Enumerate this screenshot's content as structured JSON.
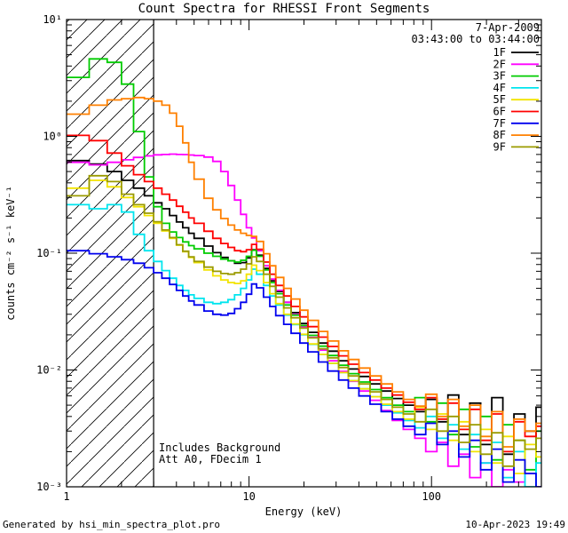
{
  "title": "Count Spectra for RHESSI Front Segments",
  "header": {
    "date": "7-Apr-2009",
    "time_range": "03:43:00 to 03:44:00"
  },
  "annotations": {
    "line1": "Includes Background",
    "line2": "Att A0, FDecim 1"
  },
  "footer": {
    "left": "Generated by hsi_min_spectra_plot.pro",
    "right": "10-Apr-2023 19:49"
  },
  "axes": {
    "x": {
      "label": "Energy (keV)",
      "scale": "log",
      "ticks": [
        {
          "v": 1,
          "label": "1"
        },
        {
          "v": 10,
          "label": "10"
        },
        {
          "v": 100,
          "label": "100"
        }
      ]
    },
    "y": {
      "label": "counts cm⁻² s⁻¹ keV⁻¹",
      "scale": "log",
      "ticks": [
        {
          "v": 0.001,
          "label": "10⁻³"
        },
        {
          "v": 0.01,
          "label": "10⁻²"
        },
        {
          "v": 0.1,
          "label": "10⁻¹"
        },
        {
          "v": 1,
          "label": "10⁰"
        },
        {
          "v": 10,
          "label": "10¹"
        }
      ]
    }
  },
  "chart_data": {
    "type": "line",
    "mode": "histogram-step",
    "x_scale": "log",
    "y_scale": "log",
    "xlim": [
      1,
      400
    ],
    "ylim": [
      0.001,
      10
    ],
    "title": "Count Spectra for RHESSI Front Segments",
    "xlabel": "Energy (keV)",
    "ylabel": "counts cm-2 s-1 keV-1",
    "legend_position": "top-right-inside",
    "grid": false,
    "excluded_region": {
      "x_min": 1,
      "x_max": 3,
      "style": "diagonal-hatch"
    },
    "x": [
      1.0,
      1.33,
      1.67,
      2.0,
      2.33,
      2.67,
      3.0,
      3.33,
      3.67,
      4.0,
      4.33,
      4.67,
      5.0,
      5.67,
      6.33,
      7.0,
      7.67,
      8.33,
      9.0,
      9.67,
      10.33,
      11.0,
      12.0,
      13.0,
      14.0,
      15.5,
      17.0,
      19.0,
      21.0,
      24.0,
      27.0,
      31.0,
      35.0,
      40.0,
      46.0,
      53.0,
      61.0,
      70.0,
      81.0,
      93.0,
      107.0,
      123.0,
      141.0,
      162.0,
      186.0,
      214.0,
      246.0,
      283.0,
      325.0,
      374.0
    ],
    "series": [
      {
        "name": "1F",
        "color": "#000000",
        "values": [
          0.62,
          0.58,
          0.5,
          0.42,
          0.36,
          0.31,
          0.27,
          0.24,
          0.21,
          0.185,
          0.165,
          0.148,
          0.134,
          0.115,
          0.101,
          0.092,
          0.086,
          0.082,
          0.083,
          0.091,
          0.107,
          0.096,
          0.074,
          0.058,
          0.047,
          0.038,
          0.031,
          0.025,
          0.021,
          0.017,
          0.0145,
          0.012,
          0.0102,
          0.0088,
          0.0076,
          0.0066,
          0.0057,
          0.005,
          0.0044,
          0.0056,
          0.0036,
          0.0061,
          0.0028,
          0.0052,
          0.0023,
          0.0058,
          0.0019,
          0.0042,
          0.003,
          0.0048
        ]
      },
      {
        "name": "2F",
        "color": "#ff00ff",
        "values": [
          0.6,
          0.57,
          0.6,
          0.63,
          0.66,
          0.68,
          0.695,
          0.7,
          0.705,
          0.7,
          0.698,
          0.692,
          0.685,
          0.665,
          0.61,
          0.5,
          0.38,
          0.285,
          0.215,
          0.165,
          0.135,
          0.105,
          0.078,
          0.06,
          0.048,
          0.038,
          0.03,
          0.0235,
          0.019,
          0.0148,
          0.012,
          0.0097,
          0.008,
          0.0066,
          0.0055,
          0.0045,
          0.0037,
          0.0031,
          0.0026,
          0.002,
          0.0024,
          0.0015,
          0.0019,
          0.0012,
          0.0016,
          0.001,
          0.0014,
          0.0011,
          0.0013,
          0.001
        ]
      },
      {
        "name": "3F",
        "color": "#00cc00",
        "values": [
          3.2,
          4.6,
          4.3,
          2.8,
          1.1,
          0.45,
          0.25,
          0.18,
          0.152,
          0.136,
          0.125,
          0.116,
          0.109,
          0.1,
          0.094,
          0.089,
          0.086,
          0.084,
          0.087,
          0.094,
          0.106,
          0.094,
          0.072,
          0.056,
          0.045,
          0.036,
          0.0295,
          0.024,
          0.0198,
          0.016,
          0.0133,
          0.011,
          0.0093,
          0.0079,
          0.0068,
          0.0058,
          0.005,
          0.0044,
          0.0058,
          0.0036,
          0.0052,
          0.0028,
          0.0046,
          0.0022,
          0.004,
          0.0017,
          0.0034,
          0.0025,
          0.0014,
          0.003
        ]
      },
      {
        "name": "4F",
        "color": "#00e5ee",
        "values": [
          0.26,
          0.24,
          0.26,
          0.225,
          0.145,
          0.105,
          0.085,
          0.071,
          0.061,
          0.053,
          0.048,
          0.044,
          0.041,
          0.038,
          0.037,
          0.038,
          0.04,
          0.044,
          0.05,
          0.059,
          0.073,
          0.066,
          0.053,
          0.043,
          0.036,
          0.0295,
          0.0245,
          0.02,
          0.0166,
          0.0136,
          0.0114,
          0.0095,
          0.0081,
          0.0069,
          0.0059,
          0.005,
          0.0043,
          0.0037,
          0.0032,
          0.004,
          0.0026,
          0.0034,
          0.0021,
          0.0028,
          0.0016,
          0.0024,
          0.0012,
          0.002,
          0.001,
          0.0016
        ]
      },
      {
        "name": "5F",
        "color": "#f2e400",
        "values": [
          0.36,
          0.42,
          0.37,
          0.3,
          0.25,
          0.21,
          0.18,
          0.155,
          0.134,
          0.117,
          0.103,
          0.092,
          0.083,
          0.072,
          0.064,
          0.059,
          0.056,
          0.055,
          0.058,
          0.066,
          0.079,
          0.071,
          0.056,
          0.045,
          0.037,
          0.03,
          0.0248,
          0.0202,
          0.0167,
          0.0136,
          0.0114,
          0.0095,
          0.0081,
          0.0069,
          0.0059,
          0.0051,
          0.0044,
          0.0038,
          0.0048,
          0.0031,
          0.0042,
          0.0025,
          0.0036,
          0.002,
          0.0031,
          0.0016,
          0.0027,
          0.0013,
          0.0023,
          0.0018
        ]
      },
      {
        "name": "6F",
        "color": "#ff0000",
        "values": [
          1.02,
          0.92,
          0.72,
          0.56,
          0.47,
          0.41,
          0.36,
          0.32,
          0.285,
          0.252,
          0.224,
          0.2,
          0.18,
          0.154,
          0.134,
          0.121,
          0.112,
          0.105,
          0.103,
          0.107,
          0.119,
          0.108,
          0.084,
          0.066,
          0.053,
          0.043,
          0.035,
          0.0285,
          0.0235,
          0.0191,
          0.0159,
          0.0132,
          0.0112,
          0.0095,
          0.0082,
          0.007,
          0.0061,
          0.0053,
          0.0046,
          0.0058,
          0.0038,
          0.0052,
          0.0031,
          0.0046,
          0.0025,
          0.0042,
          0.002,
          0.0036,
          0.0027,
          0.0033
        ]
      },
      {
        "name": "7F",
        "color": "#0000ee",
        "values": [
          0.105,
          0.099,
          0.093,
          0.088,
          0.082,
          0.075,
          0.068,
          0.061,
          0.054,
          0.048,
          0.043,
          0.039,
          0.036,
          0.032,
          0.03,
          0.0295,
          0.0305,
          0.0335,
          0.038,
          0.0445,
          0.0545,
          0.0505,
          0.042,
          0.035,
          0.0292,
          0.0246,
          0.0206,
          0.017,
          0.0143,
          0.0117,
          0.0098,
          0.0082,
          0.007,
          0.006,
          0.0051,
          0.0044,
          0.0038,
          0.0033,
          0.0028,
          0.0035,
          0.0023,
          0.003,
          0.0018,
          0.0025,
          0.0014,
          0.0021,
          0.0011,
          0.0017,
          0.0013,
          0.001
        ]
      },
      {
        "name": "8F",
        "color": "#ff8000",
        "values": [
          1.55,
          1.85,
          2.05,
          2.1,
          2.15,
          2.1,
          2.0,
          1.85,
          1.58,
          1.22,
          0.88,
          0.6,
          0.43,
          0.295,
          0.235,
          0.198,
          0.174,
          0.158,
          0.148,
          0.142,
          0.139,
          0.126,
          0.099,
          0.078,
          0.062,
          0.05,
          0.0405,
          0.0325,
          0.0266,
          0.0214,
          0.0177,
          0.0146,
          0.0123,
          0.0104,
          0.0089,
          0.0076,
          0.0065,
          0.0056,
          0.0049,
          0.0062,
          0.004,
          0.0056,
          0.0033,
          0.005,
          0.0027,
          0.0044,
          0.0022,
          0.0038,
          0.003,
          0.0035
        ]
      },
      {
        "name": "9F",
        "color": "#9b9b00",
        "values": [
          0.31,
          0.46,
          0.41,
          0.32,
          0.26,
          0.22,
          0.186,
          0.158,
          0.136,
          0.118,
          0.104,
          0.093,
          0.085,
          0.076,
          0.07,
          0.067,
          0.066,
          0.068,
          0.073,
          0.081,
          0.093,
          0.085,
          0.066,
          0.052,
          0.042,
          0.034,
          0.028,
          0.0228,
          0.0188,
          0.0152,
          0.0127,
          0.0105,
          0.0089,
          0.0076,
          0.0065,
          0.0056,
          0.0048,
          0.0042,
          0.0036,
          0.0046,
          0.003,
          0.004,
          0.0024,
          0.0034,
          0.0019,
          0.0029,
          0.0015,
          0.0025,
          0.0021,
          0.0026
        ]
      }
    ]
  }
}
